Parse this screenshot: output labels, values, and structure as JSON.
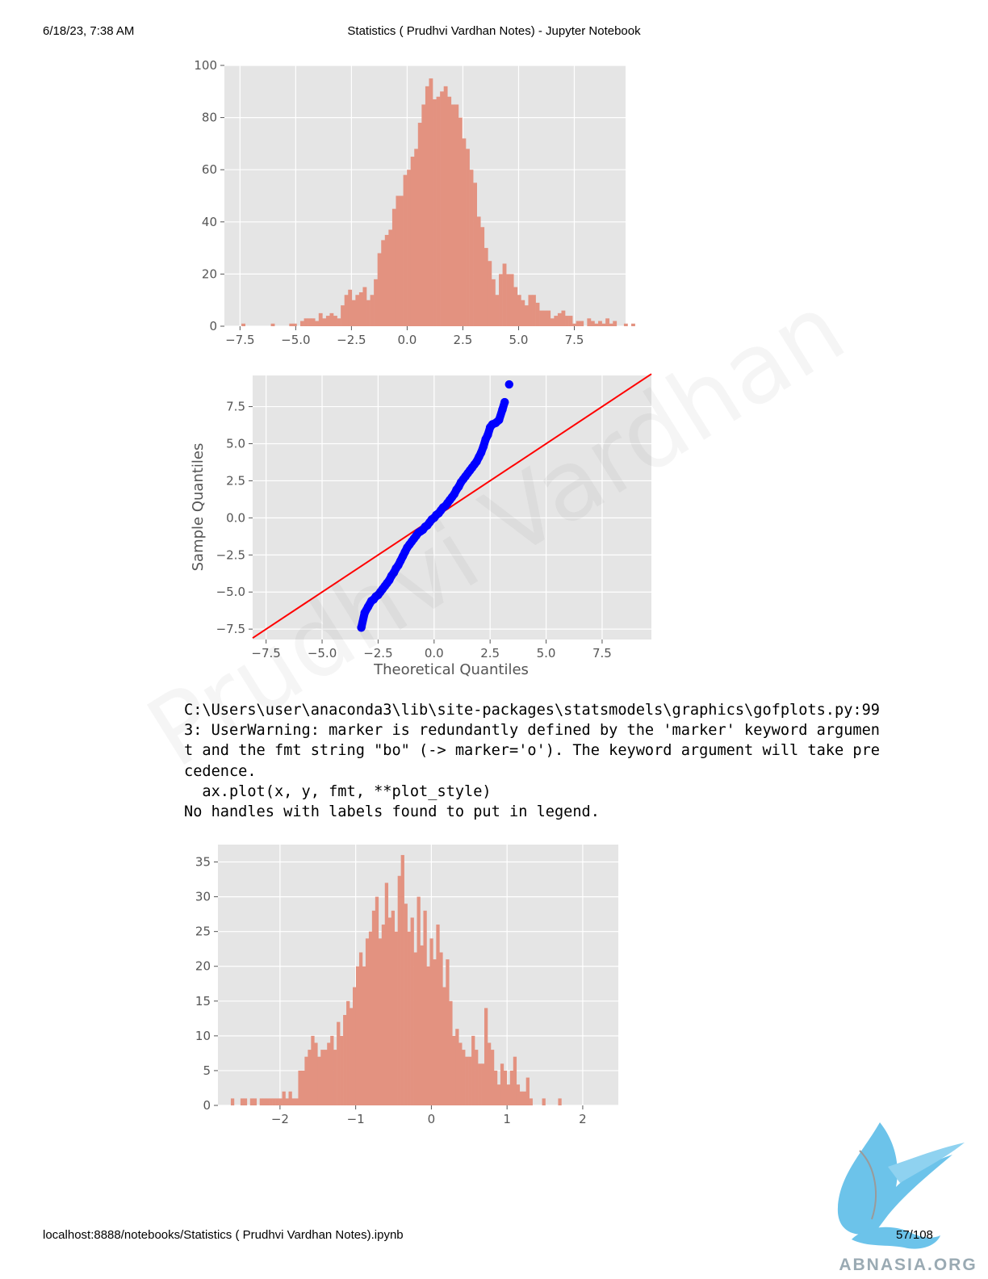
{
  "header": {
    "datetime": "6/18/23, 7:38 AM",
    "title": "Statistics ( Prudhvi Vardhan Notes) - Jupyter Notebook"
  },
  "footer": {
    "url": "localhost:8888/notebooks/Statistics ( Prudhvi Vardhan Notes).ipynb",
    "page": "57/108"
  },
  "output_lines": [
    "C:\\Users\\user\\anaconda3\\lib\\site-packages\\statsmodels\\graphics\\gofplots.py:99",
    "3: UserWarning: marker is redundantly defined by the 'marker' keyword argumen",
    "t and the fmt string \"bo\" (-> marker='o'). The keyword argument will take pre",
    "cedence.",
    "  ax.plot(x, y, fmt, **plot_style)",
    "No handles with labels found to put in legend."
  ],
  "watermark": "Prudhvi Vardhan",
  "logo_text": "ABNASIA.ORG",
  "colors": {
    "bar": "#e39280",
    "background": "#e5e5e5",
    "grid": "#ffffff",
    "points": "#0000ff",
    "line": "#ff0000"
  },
  "chart_data": [
    {
      "type": "bar",
      "subtype": "histogram",
      "title": "",
      "xlabel": "",
      "ylabel": "",
      "xlim": [
        -8.2,
        9.8
      ],
      "ylim": [
        0,
        100
      ],
      "xticks": [
        -7.5,
        -5.0,
        -2.5,
        0.0,
        2.5,
        5.0,
        7.5
      ],
      "xtick_labels": [
        "−7.5",
        "−5.0",
        "−2.5",
        "0.0",
        "2.5",
        "5.0",
        "7.5"
      ],
      "yticks": [
        0,
        20,
        40,
        60,
        80,
        100
      ],
      "ytick_labels": [
        "0",
        "20",
        "40",
        "60",
        "80",
        "100"
      ],
      "grid": true,
      "bin_start": -7.6,
      "bin_width": 0.165,
      "values": [
        0,
        1,
        0,
        0,
        0,
        0,
        0,
        0,
        0,
        1,
        0,
        0,
        0,
        0,
        1,
        1,
        0,
        2,
        3,
        3,
        3,
        2,
        5,
        3,
        4,
        5,
        4,
        3,
        8,
        12,
        14,
        10,
        12,
        13,
        15,
        10,
        12,
        18,
        28,
        33,
        35,
        37,
        45,
        50,
        50,
        58,
        60,
        65,
        68,
        78,
        85,
        92,
        95,
        87,
        88,
        90,
        92,
        88,
        85,
        85,
        80,
        72,
        68,
        60,
        55,
        42,
        38,
        30,
        25,
        18,
        12,
        20,
        24,
        20,
        20,
        15,
        12,
        10,
        8,
        12,
        12,
        9,
        6,
        6,
        6,
        3,
        4,
        5,
        6,
        4,
        4,
        1,
        2,
        2,
        0,
        3,
        2,
        1,
        2,
        1,
        3,
        1,
        2,
        0,
        0,
        1,
        0,
        1,
        0,
        0,
        1,
        0,
        0,
        1
      ]
    },
    {
      "type": "scatter",
      "subtype": "qq-plot",
      "title": "",
      "xlabel": "Theoretical Quantiles",
      "ylabel": "Sample Quantiles",
      "xlim": [
        -8.1,
        9.7
      ],
      "ylim": [
        -8.2,
        9.6
      ],
      "xticks": [
        -7.5,
        -5.0,
        -2.5,
        0.0,
        2.5,
        5.0,
        7.5
      ],
      "xtick_labels": [
        "−7.5",
        "−5.0",
        "−2.5",
        "0.0",
        "2.5",
        "5.0",
        "7.5"
      ],
      "yticks": [
        -7.5,
        -5.0,
        -2.5,
        0.0,
        2.5,
        5.0,
        7.5
      ],
      "ytick_labels": [
        "−7.5",
        "−5.0",
        "−2.5",
        "0.0",
        "2.5",
        "5.0",
        "7.5"
      ],
      "grid": true,
      "reference_line": {
        "x": [
          -8.1,
          9.7
        ],
        "y": [
          -8.1,
          9.7
        ]
      },
      "points": {
        "x": [
          -3.25,
          -3.1,
          -2.95,
          -2.8,
          -2.7,
          -2.6,
          -2.5,
          -2.4,
          -2.3,
          -2.2,
          -2.1,
          -2.0,
          -1.9,
          -1.8,
          -1.7,
          -1.6,
          -1.5,
          -1.4,
          -1.3,
          -1.2,
          -1.1,
          -1.0,
          -0.9,
          -0.8,
          -0.7,
          -0.6,
          -0.5,
          -0.4,
          -0.3,
          -0.2,
          -0.1,
          0.0,
          0.1,
          0.2,
          0.3,
          0.4,
          0.5,
          0.6,
          0.7,
          0.8,
          0.9,
          1.0,
          1.1,
          1.2,
          1.3,
          1.4,
          1.5,
          1.6,
          1.7,
          1.8,
          1.9,
          2.0,
          2.1,
          2.2,
          2.3,
          2.4,
          2.5,
          2.6,
          2.75,
          2.9,
          3.05,
          3.15,
          3.35
        ],
        "y": [
          -7.4,
          -6.4,
          -6.0,
          -5.6,
          -5.5,
          -5.3,
          -5.2,
          -5.0,
          -4.8,
          -4.6,
          -4.4,
          -4.2,
          -3.9,
          -3.7,
          -3.4,
          -3.2,
          -2.9,
          -2.6,
          -2.3,
          -2.0,
          -1.8,
          -1.6,
          -1.4,
          -1.2,
          -1.0,
          -0.9,
          -0.8,
          -0.6,
          -0.5,
          -0.3,
          -0.1,
          0.0,
          0.2,
          0.3,
          0.5,
          0.7,
          0.8,
          1.0,
          1.2,
          1.4,
          1.6,
          1.9,
          2.1,
          2.4,
          2.6,
          2.8,
          3.0,
          3.2,
          3.4,
          3.6,
          3.8,
          4.1,
          4.4,
          4.8,
          5.3,
          5.6,
          6.1,
          6.3,
          6.4,
          6.6,
          7.3,
          7.8,
          9.0
        ]
      }
    },
    {
      "type": "bar",
      "subtype": "histogram",
      "title": "",
      "xlabel": "",
      "ylabel": "",
      "xlim": [
        -2.82,
        2.47
      ],
      "ylim": [
        0,
        37.5
      ],
      "xticks": [
        -2,
        -1,
        0,
        1,
        2
      ],
      "xtick_labels": [
        "−2",
        "−1",
        "0",
        "1",
        "2"
      ],
      "yticks": [
        0,
        5,
        10,
        15,
        20,
        25,
        30,
        35
      ],
      "ytick_labels": [
        "0",
        "5",
        "10",
        "15",
        "20",
        "25",
        "30",
        "35"
      ],
      "grid": true,
      "bin_start": -2.65,
      "bin_width": 0.0424,
      "values": [
        1,
        0,
        0,
        1,
        1,
        0,
        1,
        1,
        0,
        1,
        1,
        1,
        1,
        1,
        1,
        1,
        2,
        1,
        2,
        1,
        1,
        5,
        5,
        7,
        8,
        10,
        9,
        7,
        8,
        8,
        9,
        10,
        8,
        12,
        10,
        13,
        15,
        14,
        17,
        20,
        22,
        20,
        24,
        25,
        28,
        30,
        24,
        26,
        32,
        27,
        28,
        25,
        33,
        36,
        29,
        25,
        27,
        22,
        30,
        23,
        28,
        20,
        24,
        21,
        26,
        22,
        17,
        21,
        15,
        10,
        11,
        9,
        8,
        7,
        7,
        10,
        8,
        6,
        6,
        14,
        9,
        8,
        5,
        3,
        6,
        5,
        3,
        5,
        7,
        3,
        2,
        2,
        4,
        1,
        0,
        0,
        0,
        1,
        0,
        0,
        0,
        0,
        1
      ]
    }
  ]
}
